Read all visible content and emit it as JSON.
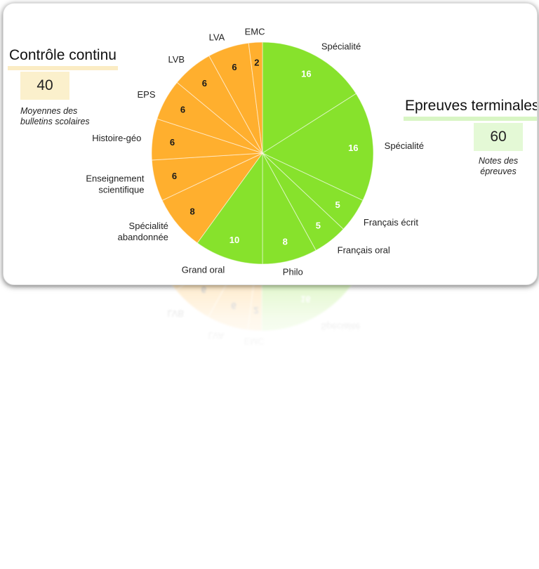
{
  "controle_continu": {
    "title": "Contrôle continu",
    "score": "40",
    "caption_line1": "Moyennes des",
    "caption_line2": "bulletins scolaires"
  },
  "epreuves_terminales": {
    "title": "Epreuves terminales",
    "score": "60",
    "caption_line1": "Notes des",
    "caption_line2": "épreuves"
  },
  "colors": {
    "controle_continu": "#ffaf2e",
    "epreuves_terminales": "#87e22c"
  },
  "chart_data": {
    "type": "pie",
    "title": "",
    "start": "12 o'clock, clockwise",
    "slices": [
      {
        "label": [
          "Spécialité"
        ],
        "value": 16,
        "group": "epreuves_terminales"
      },
      {
        "label": [
          "Spécialité"
        ],
        "value": 16,
        "group": "epreuves_terminales"
      },
      {
        "label": [
          "Français écrit"
        ],
        "value": 5,
        "group": "epreuves_terminales"
      },
      {
        "label": [
          "Français oral"
        ],
        "value": 5,
        "group": "epreuves_terminales"
      },
      {
        "label": [
          "Philo"
        ],
        "value": 8,
        "group": "epreuves_terminales"
      },
      {
        "label": [
          "Grand oral"
        ],
        "value": 10,
        "group": "epreuves_terminales"
      },
      {
        "label": [
          "Spécialité",
          "abandonnée"
        ],
        "value": 8,
        "group": "controle_continu"
      },
      {
        "label": [
          "Enseignement",
          "scientifique"
        ],
        "value": 6,
        "group": "controle_continu"
      },
      {
        "label": [
          "Histoire-géo"
        ],
        "value": 6,
        "group": "controle_continu"
      },
      {
        "label": [
          "EPS"
        ],
        "value": 6,
        "group": "controle_continu"
      },
      {
        "label": [
          "LVB"
        ],
        "value": 6,
        "group": "controle_continu"
      },
      {
        "label": [
          "LVA"
        ],
        "value": 6,
        "group": "controle_continu"
      },
      {
        "label": [
          "EMC"
        ],
        "value": 2,
        "group": "controle_continu"
      }
    ]
  }
}
